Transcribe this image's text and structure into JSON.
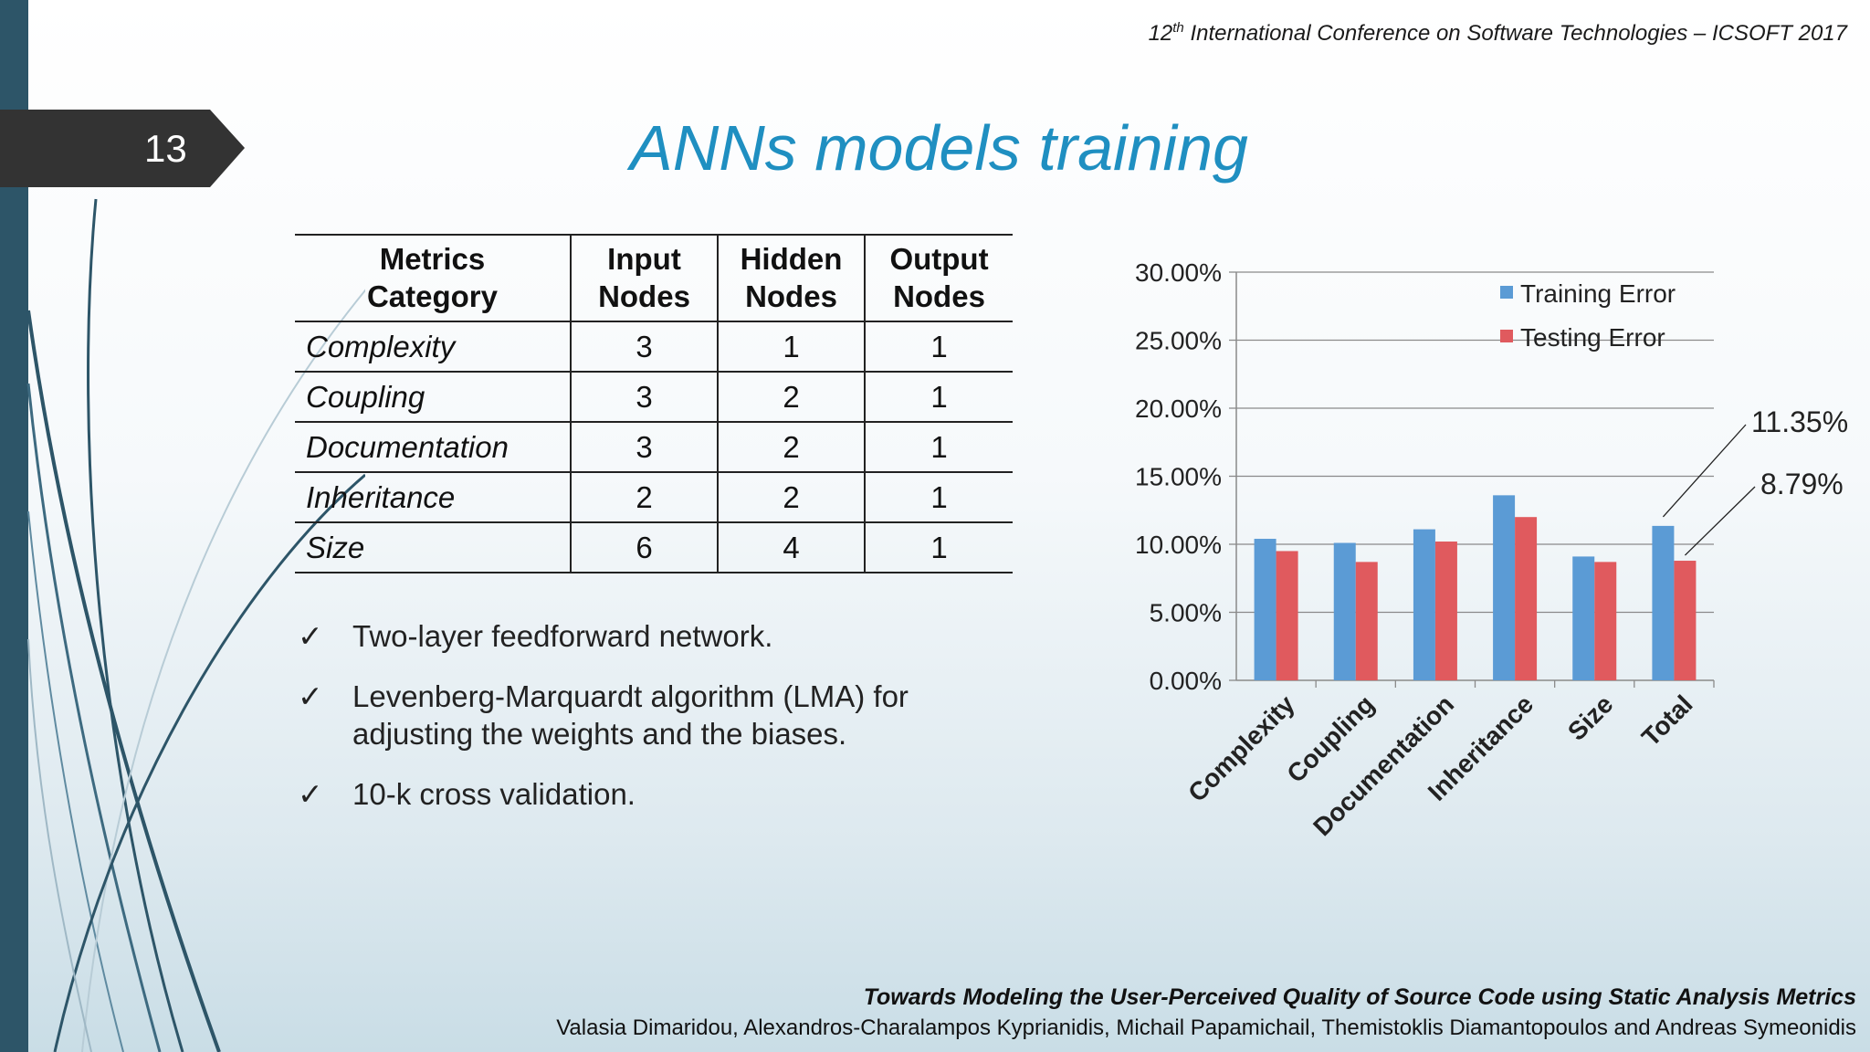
{
  "conference": {
    "prefix": "12",
    "sup": "th",
    "rest": " International Conference on Software Technologies – ICSOFT 2017"
  },
  "slide_number": "13",
  "title": "ANNs models training",
  "table": {
    "headers": [
      [
        "Metrics",
        "Category"
      ],
      [
        "Input",
        "Nodes"
      ],
      [
        "Hidden",
        "Nodes"
      ],
      [
        "Output",
        "Nodes"
      ]
    ],
    "rows": [
      [
        "Complexity",
        "3",
        "1",
        "1"
      ],
      [
        "Coupling",
        "3",
        "2",
        "1"
      ],
      [
        "Documentation",
        "3",
        "2",
        "1"
      ],
      [
        "Inheritance",
        "2",
        "2",
        "1"
      ],
      [
        "Size",
        "6",
        "4",
        "1"
      ]
    ]
  },
  "bullets": {
    "check": "✓",
    "items": [
      [
        "Two-layer feedforward network."
      ],
      [
        "Levenberg-Marquardt algorithm (LMA) for",
        "adjusting the weights and the biases."
      ],
      [
        "10-k cross validation."
      ]
    ]
  },
  "chart_data": {
    "type": "bar",
    "categories": [
      "Complexity",
      "Coupling",
      "Documentation",
      "Inheritance",
      "Size",
      "Total"
    ],
    "series": [
      {
        "name": "Training Error",
        "color": "#5b9bd5",
        "values": [
          10.4,
          10.1,
          11.1,
          13.6,
          9.1,
          11.35
        ]
      },
      {
        "name": "Testing Error",
        "color": "#e05a5e",
        "values": [
          9.5,
          8.7,
          10.2,
          12.0,
          8.7,
          8.79
        ]
      }
    ],
    "ylim": [
      0,
      30
    ],
    "yticks": [
      "0.00%",
      "5.00%",
      "10.00%",
      "15.00%",
      "20.00%",
      "25.00%",
      "30.00%"
    ],
    "legend": "top-right",
    "grid": true,
    "annotations": [
      "11.35%",
      "8.79%"
    ]
  },
  "footer": {
    "title": "Towards Modeling the User-Perceived Quality of Source Code using Static Analysis Metrics",
    "authors": "Valasia Dimaridou, Alexandros-Charalampos Kyprianidis, Michail Papamichail, Themistoklis Diamantopoulos and Andreas Symeonidis"
  }
}
